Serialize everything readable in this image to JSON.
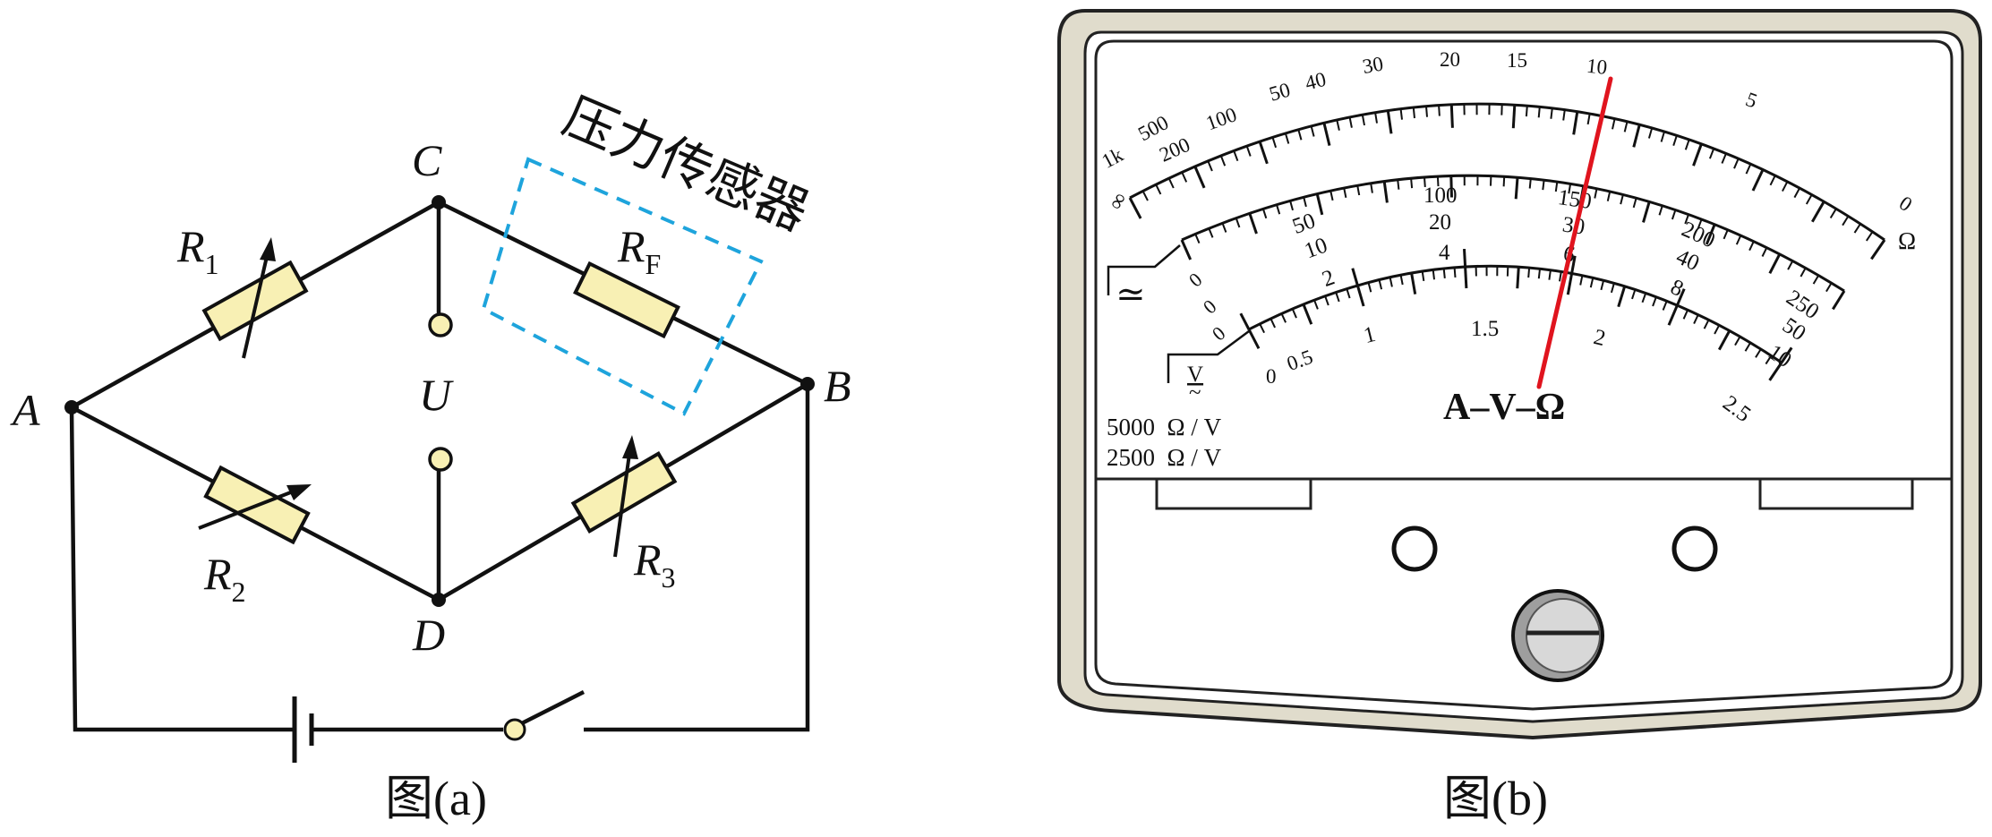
{
  "figure_a": {
    "caption": "图(a)",
    "sensor_label": "压力传感器",
    "node_a": "A",
    "node_b": "B",
    "node_c": "C",
    "node_d": "D",
    "voltage_label": "U",
    "r1": {
      "symbol": "R",
      "sub": "1"
    },
    "r2": {
      "symbol": "R",
      "sub": "2"
    },
    "r3": {
      "symbol": "R",
      "sub": "3"
    },
    "rf": {
      "symbol": "R",
      "sub": "F"
    }
  },
  "figure_b": {
    "caption": "图(b)",
    "meter_name": "A–V–Ω",
    "ohm_symbol": "Ω",
    "ac_symbol": "≃",
    "v_symbol": "V",
    "sens_line1": "5000  Ω / V",
    "sens_line2": "2500  Ω / V",
    "ohm_scale": [
      "∞",
      "1k",
      "500",
      "200",
      "100",
      "50",
      "40",
      "30",
      "20",
      "15",
      "10",
      "5",
      "0"
    ],
    "dc_scale_250": [
      "0",
      "50",
      "100",
      "150",
      "200",
      "250"
    ],
    "dc_scale_50": [
      "0",
      "10",
      "20",
      "30",
      "40",
      "50"
    ],
    "dc_scale_10": [
      "0",
      "2",
      "4",
      "6",
      "8",
      "10"
    ],
    "dc_scale_25": [
      "0",
      "0.5",
      "1",
      "1.5",
      "2",
      "2.5"
    ]
  },
  "colors": {
    "resistor_fill": "#f8f0b4",
    "sensor_box": "#1ea4dc",
    "needle": "#e0141e",
    "meter_case": "#e0dccc",
    "knob": "#c8c8c8"
  }
}
